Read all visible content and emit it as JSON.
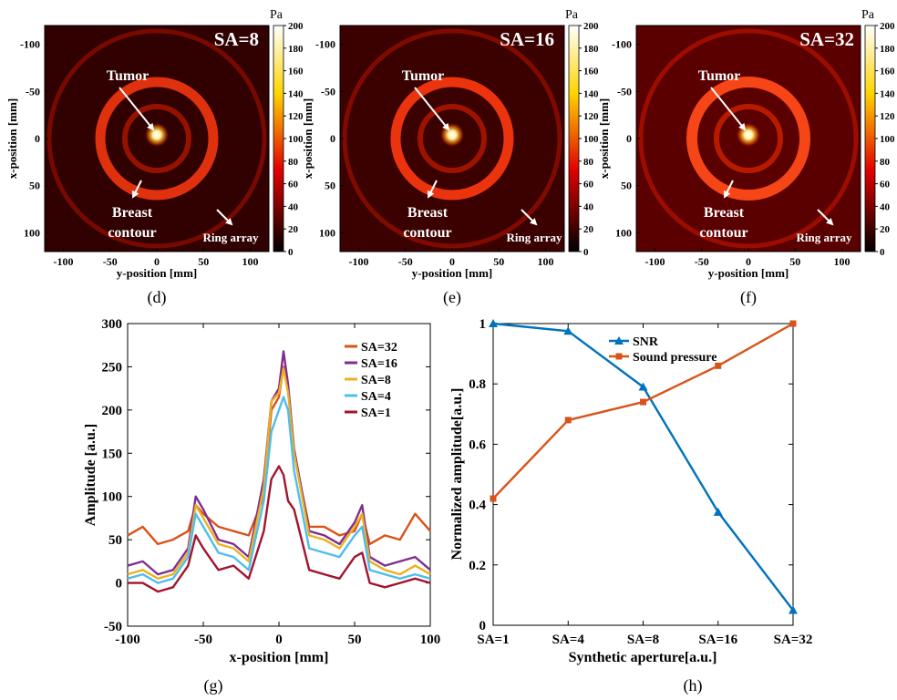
{
  "maps": [
    {
      "panel_label": "(d)",
      "sa_label": "SA=8",
      "intensity": 0.75,
      "xlabel": "y-position [mm]",
      "ylabel": "x-position [mm]",
      "x_ticks": [
        -100,
        -50,
        0,
        50,
        100
      ],
      "y_ticks": [
        -100,
        -50,
        0,
        50,
        100
      ],
      "colorbar_unit": "Pa",
      "colorbar_ticks": [
        0,
        20,
        40,
        60,
        80,
        100,
        120,
        140,
        160,
        180,
        200
      ],
      "annotations": {
        "tumor": "Tumor",
        "breast": "Breast",
        "contour": "contour",
        "ring": "Ring array"
      }
    },
    {
      "panel_label": "(e)",
      "sa_label": "SA=16",
      "intensity": 0.85,
      "xlabel": "y-position [mm]",
      "ylabel": "x-position [mm]",
      "x_ticks": [
        -100,
        -50,
        0,
        50,
        100
      ],
      "y_ticks": [
        -100,
        -50,
        0,
        50,
        100
      ],
      "colorbar_unit": "Pa",
      "colorbar_ticks": [
        0,
        20,
        40,
        60,
        80,
        100,
        120,
        140,
        160,
        180,
        200
      ],
      "annotations": {
        "tumor": "Tumor",
        "breast": "Breast",
        "contour": "contour",
        "ring": "Ring array"
      }
    },
    {
      "panel_label": "(f)",
      "sa_label": "SA=32",
      "intensity": 1.0,
      "xlabel": "y-position [mm]",
      "ylabel": "x-position [mm]",
      "x_ticks": [
        -100,
        -50,
        0,
        50,
        100
      ],
      "y_ticks": [
        -100,
        -50,
        0,
        50,
        100
      ],
      "colorbar_unit": "Pa",
      "colorbar_ticks": [
        0,
        20,
        40,
        60,
        80,
        100,
        120,
        140,
        160,
        180,
        200
      ],
      "annotations": {
        "tumor": "Tumor",
        "breast": "Breast",
        "contour": "contour",
        "ring": "Ring array"
      }
    }
  ],
  "chart_data": [
    {
      "type": "line",
      "panel_label": "(g)",
      "xlabel": "x-position [mm]",
      "ylabel": "Amplitude [a.u.]",
      "xlim": [
        -100,
        100
      ],
      "ylim": [
        -50,
        300
      ],
      "x_ticks": [
        -100,
        -50,
        0,
        50,
        100
      ],
      "y_ticks": [
        -50,
        0,
        50,
        100,
        150,
        200,
        250,
        300
      ],
      "legend_position": "top-right",
      "x": [
        -100,
        -90,
        -80,
        -70,
        -60,
        -55,
        -50,
        -40,
        -30,
        -20,
        -10,
        -5,
        0,
        3,
        6,
        10,
        20,
        30,
        40,
        50,
        55,
        60,
        70,
        80,
        90,
        100
      ],
      "series": [
        {
          "name": "SA=32",
          "color": "#D95319",
          "values": [
            55,
            65,
            45,
            50,
            60,
            90,
            80,
            65,
            60,
            55,
            100,
            200,
            215,
            250,
            225,
            150,
            65,
            65,
            55,
            60,
            80,
            45,
            55,
            50,
            80,
            60
          ]
        },
        {
          "name": "SA=16",
          "color": "#7E2F8E",
          "values": [
            20,
            25,
            10,
            15,
            40,
            100,
            85,
            50,
            45,
            30,
            120,
            210,
            225,
            268,
            230,
            155,
            60,
            55,
            45,
            70,
            90,
            30,
            20,
            25,
            30,
            15
          ]
        },
        {
          "name": "SA=8",
          "color": "#EDB120",
          "values": [
            10,
            15,
            5,
            10,
            35,
            90,
            75,
            45,
            40,
            25,
            110,
            210,
            220,
            248,
            220,
            150,
            55,
            50,
            40,
            65,
            80,
            25,
            15,
            10,
            20,
            10
          ]
        },
        {
          "name": "SA=4",
          "color": "#4DBEEE",
          "values": [
            5,
            10,
            0,
            5,
            30,
            80,
            65,
            35,
            30,
            15,
            95,
            175,
            200,
            215,
            200,
            130,
            40,
            35,
            30,
            55,
            65,
            15,
            10,
            5,
            10,
            5
          ]
        },
        {
          "name": "SA=1",
          "color": "#A2142F",
          "values": [
            0,
            0,
            -10,
            -5,
            20,
            55,
            40,
            15,
            20,
            5,
            60,
            120,
            135,
            125,
            95,
            85,
            15,
            10,
            5,
            30,
            35,
            0,
            -5,
            0,
            5,
            0
          ]
        }
      ]
    },
    {
      "type": "line",
      "panel_label": "(h)",
      "xlabel": "Synthetic aperture[a.u.]",
      "ylabel": "Normalized amplitude[a.u.]",
      "categories": [
        "SA=1",
        "SA=4",
        "SA=8",
        "SA=16",
        "SA=32"
      ],
      "ylim": [
        0,
        1
      ],
      "y_ticks": [
        0,
        0.2,
        0.4,
        0.6,
        0.8,
        1
      ],
      "legend_position": "top-center",
      "series": [
        {
          "name": "SNR",
          "color": "#0072BD",
          "marker": "triangle",
          "values": [
            1.0,
            0.975,
            0.79,
            0.375,
            0.05
          ]
        },
        {
          "name": "Sound pressure",
          "color": "#D95319",
          "marker": "square",
          "values": [
            0.42,
            0.68,
            0.74,
            0.86,
            1.0
          ]
        }
      ]
    }
  ]
}
